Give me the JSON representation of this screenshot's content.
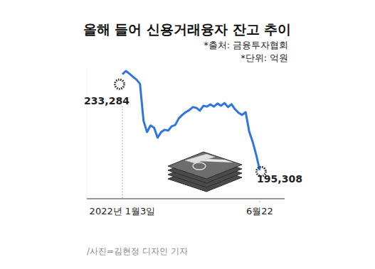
{
  "chart_data": {
    "type": "line",
    "title": "올해 들어 신용거래융자 잔고 추이",
    "source": "*출처: 금융투자협회",
    "unit": "*단위: 억원",
    "caption": "/사진=김현정 디자인 기자",
    "categories": [
      "2022년 1월3일",
      null,
      null,
      null,
      null,
      null,
      null,
      null,
      null,
      null,
      null,
      null,
      null,
      null,
      null,
      null,
      null,
      null,
      null,
      null,
      null,
      null,
      null,
      null,
      null,
      null,
      null,
      null,
      null,
      null,
      null,
      null,
      null,
      null,
      null,
      null,
      null,
      null,
      null,
      "6월22"
    ],
    "values": [
      233284,
      234600,
      233500,
      232300,
      231200,
      229500,
      214900,
      210400,
      213000,
      212100,
      208200,
      210400,
      211300,
      211000,
      212700,
      213200,
      215800,
      217200,
      218300,
      219100,
      220300,
      220000,
      218900,
      220800,
      220500,
      221400,
      220500,
      221700,
      220800,
      221900,
      220300,
      221400,
      219400,
      218000,
      217200,
      218300,
      210700,
      206500,
      201400,
      195308
    ],
    "value_labels": [
      "233,284",
      null,
      null,
      null,
      null,
      null,
      null,
      null,
      null,
      null,
      null,
      null,
      null,
      null,
      null,
      null,
      null,
      null,
      null,
      null,
      null,
      null,
      null,
      null,
      null,
      null,
      null,
      null,
      null,
      null,
      null,
      null,
      null,
      null,
      null,
      null,
      null,
      null,
      null,
      "195,308"
    ],
    "color": "#2f74e0",
    "ylim": [
      184000,
      236000
    ],
    "tick_labels": "x"
  }
}
